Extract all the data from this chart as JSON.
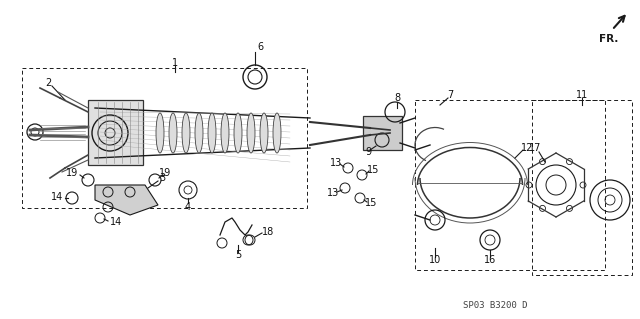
{
  "bg_color": "#ffffff",
  "diagram_color": "#1a1a1a",
  "bottom_text": "SP03 B3200 D",
  "fr_label": "FR.",
  "fig_width": 6.4,
  "fig_height": 3.19,
  "dpi": 100
}
